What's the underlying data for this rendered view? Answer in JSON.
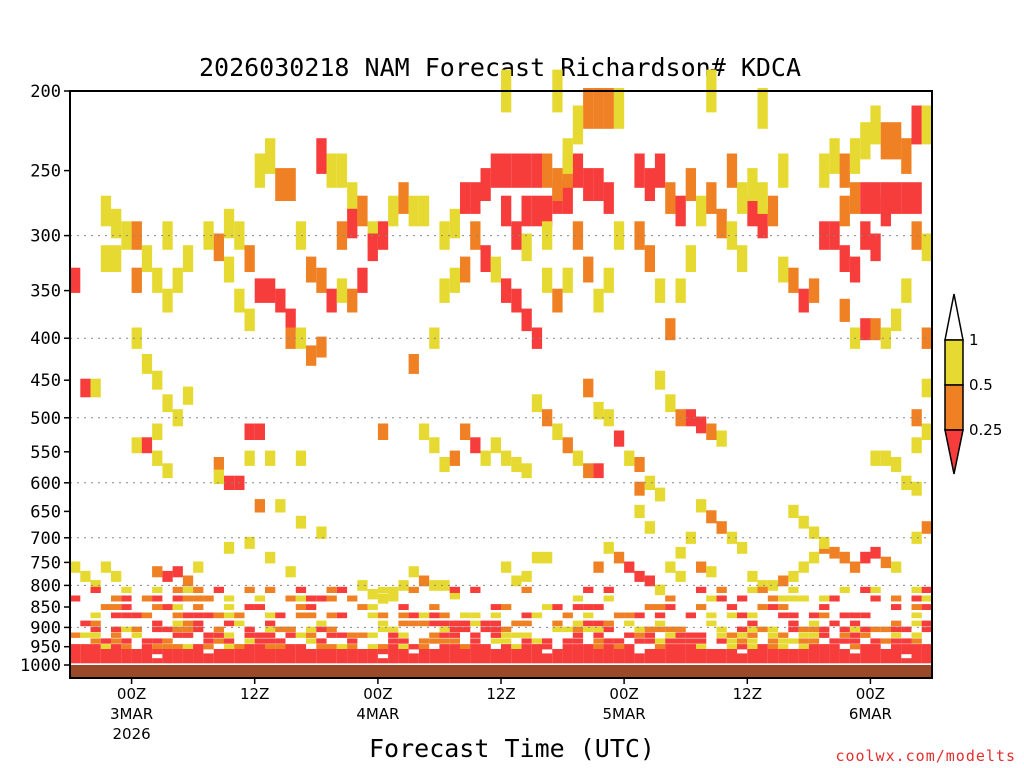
{
  "chart_data": {
    "type": "heatmap",
    "title": "2026030218 NAM Forecast Richardson# KDCA",
    "xlabel": "Forecast Time (UTC)",
    "ylabel": "",
    "credit": "coolwx.com/modelts",
    "y_ticks": [
      "200",
      "250",
      "300",
      "350",
      "400",
      "450",
      "500",
      "550",
      "600",
      "650",
      "700",
      "750",
      "800",
      "850",
      "900",
      "950",
      "1000"
    ],
    "y_tick_values": [
      200,
      250,
      300,
      350,
      400,
      450,
      500,
      550,
      600,
      650,
      700,
      750,
      800,
      850,
      900,
      950,
      1000
    ],
    "y_gridlines": [
      300,
      400,
      500,
      600,
      700,
      800,
      900
    ],
    "x_range_hours": [
      -6,
      78
    ],
    "x_ticks": [
      {
        "hour": 0,
        "label": "00Z",
        "sub1": "3MAR",
        "sub2": "2026"
      },
      {
        "hour": 12,
        "label": "12Z",
        "sub1": "",
        "sub2": ""
      },
      {
        "hour": 24,
        "label": "00Z",
        "sub1": "4MAR",
        "sub2": ""
      },
      {
        "hour": 36,
        "label": "12Z",
        "sub1": "",
        "sub2": ""
      },
      {
        "hour": 48,
        "label": "00Z",
        "sub1": "5MAR",
        "sub2": ""
      },
      {
        "hour": 60,
        "label": "12Z",
        "sub1": "",
        "sub2": ""
      },
      {
        "hour": 72,
        "label": "00Z",
        "sub1": "6MAR",
        "sub2": ""
      }
    ],
    "colorbar": {
      "levels": [
        "1",
        "0.5",
        "0.25"
      ],
      "bins": [
        {
          "range": "0.5-1",
          "color": "#e6da32"
        },
        {
          "range": "0.25-0.5",
          "color": "#ef8023"
        },
        {
          "range": "<0.25",
          "color": "#f73c3c"
        }
      ],
      "over_color": "#ffffff",
      "under_color": "#f73c3c"
    },
    "ground_color": "#9a4a28",
    "cells": [
      [
        -5.5,
        340,
        3
      ],
      [
        -4.5,
        460,
        3
      ],
      [
        -3.5,
        460,
        1
      ],
      [
        -2.5,
        280,
        1
      ],
      [
        -1.5,
        290,
        1
      ],
      [
        -0.5,
        300,
        1
      ],
      [
        0.5,
        300,
        2
      ],
      [
        1.5,
        320,
        1
      ],
      [
        2.5,
        340,
        1
      ],
      [
        3.5,
        360,
        1
      ],
      [
        -2.5,
        320,
        1
      ],
      [
        -1.5,
        320,
        1
      ],
      [
        0.5,
        340,
        2
      ],
      [
        3.5,
        300,
        1
      ],
      [
        4.5,
        340,
        1
      ],
      [
        5.5,
        320,
        1
      ],
      [
        0.5,
        400,
        1
      ],
      [
        1.5,
        430,
        1
      ],
      [
        2.5,
        450,
        1
      ],
      [
        3.5,
        480,
        1
      ],
      [
        4.5,
        500,
        1
      ],
      [
        5.5,
        470,
        1
      ],
      [
        0.5,
        540,
        1
      ],
      [
        1.5,
        540,
        3
      ],
      [
        2.5,
        560,
        1
      ],
      [
        3.5,
        580,
        1
      ],
      [
        2.5,
        520,
        1
      ],
      [
        -2.5,
        760,
        1
      ],
      [
        -1.5,
        780,
        1
      ],
      [
        -3.5,
        800,
        1
      ],
      [
        -4.5,
        780,
        1
      ],
      [
        -5.5,
        760,
        1
      ],
      [
        2.5,
        770,
        2
      ],
      [
        3.5,
        780,
        3
      ],
      [
        4.5,
        770,
        3
      ],
      [
        5.5,
        790,
        2
      ],
      [
        6.5,
        760,
        1
      ],
      [
        7.5,
        300,
        1
      ],
      [
        8.5,
        310,
        2
      ],
      [
        9.5,
        330,
        1
      ],
      [
        10.5,
        360,
        1
      ],
      [
        11.5,
        380,
        1
      ],
      [
        9.5,
        290,
        1
      ],
      [
        10.5,
        300,
        1
      ],
      [
        11.5,
        320,
        2
      ],
      [
        12.5,
        350,
        3
      ],
      [
        13.5,
        350,
        3
      ],
      [
        14.5,
        360,
        3
      ],
      [
        15.5,
        380,
        3
      ],
      [
        12.5,
        250,
        1
      ],
      [
        13.5,
        240,
        1
      ],
      [
        14.5,
        260,
        2
      ],
      [
        15.5,
        260,
        2
      ],
      [
        16.5,
        300,
        1
      ],
      [
        17.5,
        330,
        2
      ],
      [
        18.5,
        340,
        2
      ],
      [
        19.5,
        360,
        3
      ],
      [
        15.5,
        400,
        2
      ],
      [
        16.5,
        400,
        1
      ],
      [
        17.5,
        420,
        2
      ],
      [
        18.5,
        410,
        2
      ],
      [
        11.5,
        520,
        3
      ],
      [
        12.5,
        520,
        3
      ],
      [
        11.5,
        560,
        1
      ],
      [
        13.5,
        560,
        1
      ],
      [
        16.5,
        560,
        1
      ],
      [
        8.5,
        570,
        2
      ],
      [
        9.5,
        600,
        3
      ],
      [
        10.5,
        600,
        3
      ],
      [
        8.5,
        590,
        1
      ],
      [
        12.5,
        640,
        2
      ],
      [
        14.5,
        640,
        1
      ],
      [
        16.5,
        670,
        1
      ],
      [
        18.5,
        690,
        1
      ],
      [
        9.5,
        720,
        1
      ],
      [
        11.5,
        710,
        1
      ],
      [
        13.5,
        740,
        1
      ],
      [
        15.5,
        770,
        1
      ],
      [
        18.5,
        240,
        3
      ],
      [
        19.5,
        250,
        1
      ],
      [
        20.5,
        250,
        1
      ],
      [
        21.5,
        270,
        1
      ],
      [
        20.5,
        300,
        2
      ],
      [
        21.5,
        290,
        3
      ],
      [
        22.5,
        280,
        2
      ],
      [
        23.5,
        300,
        1
      ],
      [
        20.5,
        350,
        1
      ],
      [
        21.5,
        360,
        2
      ],
      [
        22.5,
        340,
        3
      ],
      [
        23.5,
        310,
        3
      ],
      [
        24.5,
        300,
        3
      ],
      [
        25.5,
        280,
        1
      ],
      [
        26.5,
        270,
        2
      ],
      [
        27.5,
        280,
        1
      ],
      [
        28.5,
        280,
        1
      ],
      [
        27.5,
        430,
        2
      ],
      [
        29.5,
        400,
        1
      ],
      [
        30.5,
        350,
        1
      ],
      [
        31.5,
        340,
        1
      ],
      [
        30.5,
        300,
        1
      ],
      [
        31.5,
        290,
        1
      ],
      [
        32.5,
        270,
        3
      ],
      [
        33.5,
        270,
        3
      ],
      [
        34.5,
        260,
        3
      ],
      [
        32.5,
        330,
        2
      ],
      [
        33.5,
        300,
        2
      ],
      [
        34.5,
        320,
        3
      ],
      [
        35.5,
        330,
        1
      ],
      [
        35.5,
        250,
        3
      ],
      [
        36.5,
        250,
        3
      ],
      [
        37.5,
        250,
        3
      ],
      [
        38.5,
        250,
        3
      ],
      [
        39.5,
        250,
        3
      ],
      [
        36.5,
        280,
        3
      ],
      [
        37.5,
        300,
        3
      ],
      [
        38.5,
        280,
        3
      ],
      [
        39.5,
        280,
        3
      ],
      [
        40.5,
        280,
        3
      ],
      [
        41.5,
        270,
        3
      ],
      [
        42.5,
        270,
        3
      ],
      [
        40.5,
        250,
        2
      ],
      [
        41.5,
        260,
        2
      ],
      [
        42.5,
        250,
        2
      ],
      [
        43.5,
        250,
        3
      ],
      [
        44.5,
        260,
        3
      ],
      [
        45.5,
        260,
        3
      ],
      [
        46.5,
        270,
        3
      ],
      [
        36.5,
        350,
        3
      ],
      [
        37.5,
        360,
        3
      ],
      [
        38.5,
        380,
        3
      ],
      [
        39.5,
        400,
        3
      ],
      [
        40.5,
        340,
        1
      ],
      [
        41.5,
        360,
        2
      ],
      [
        42.5,
        340,
        1
      ],
      [
        43.5,
        300,
        2
      ],
      [
        44.5,
        330,
        2
      ],
      [
        45.5,
        360,
        1
      ],
      [
        46.5,
        340,
        1
      ],
      [
        47.5,
        300,
        1
      ],
      [
        38.5,
        310,
        1
      ],
      [
        40.5,
        300,
        1
      ],
      [
        44.5,
        210,
        2
      ],
      [
        45.5,
        210,
        2
      ],
      [
        46.5,
        210,
        2
      ],
      [
        42.5,
        240,
        1
      ],
      [
        43.5,
        220,
        1
      ],
      [
        47.5,
        210,
        1
      ],
      [
        41.5,
        200,
        1
      ],
      [
        36.5,
        200,
        1
      ],
      [
        49.5,
        250,
        3
      ],
      [
        50.5,
        260,
        3
      ],
      [
        51.5,
        250,
        3
      ],
      [
        52.5,
        270,
        2
      ],
      [
        53.5,
        280,
        3
      ],
      [
        54.5,
        260,
        2
      ],
      [
        55.5,
        280,
        1
      ],
      [
        49.5,
        300,
        2
      ],
      [
        50.5,
        320,
        2
      ],
      [
        51.5,
        350,
        1
      ],
      [
        52.5,
        390,
        2
      ],
      [
        53.5,
        350,
        1
      ],
      [
        54.5,
        320,
        1
      ],
      [
        56.5,
        270,
        2
      ],
      [
        57.5,
        290,
        2
      ],
      [
        58.5,
        300,
        1
      ],
      [
        59.5,
        320,
        1
      ],
      [
        60.5,
        280,
        3
      ],
      [
        61.5,
        290,
        3
      ],
      [
        62.5,
        280,
        2
      ],
      [
        63.5,
        250,
        1
      ],
      [
        58.5,
        250,
        2
      ],
      [
        59.5,
        270,
        1
      ],
      [
        60.5,
        260,
        1
      ],
      [
        61.5,
        270,
        1
      ],
      [
        56.5,
        200,
        1
      ],
      [
        61.5,
        210,
        1
      ],
      [
        63.5,
        330,
        1
      ],
      [
        64.5,
        340,
        2
      ],
      [
        65.5,
        360,
        3
      ],
      [
        66.5,
        350,
        2
      ],
      [
        67.5,
        300,
        3
      ],
      [
        68.5,
        300,
        3
      ],
      [
        69.5,
        320,
        3
      ],
      [
        70.5,
        330,
        3
      ],
      [
        71.5,
        300,
        3
      ],
      [
        72.5,
        310,
        3
      ],
      [
        73.5,
        280,
        3
      ],
      [
        69.5,
        280,
        2
      ],
      [
        70.5,
        270,
        2
      ],
      [
        71.5,
        270,
        3
      ],
      [
        72.5,
        270,
        3
      ],
      [
        73.5,
        270,
        3
      ],
      [
        74.5,
        270,
        3
      ],
      [
        75.5,
        270,
        3
      ],
      [
        76.5,
        270,
        3
      ],
      [
        67.5,
        250,
        1
      ],
      [
        68.5,
        240,
        1
      ],
      [
        69.5,
        250,
        2
      ],
      [
        70.5,
        240,
        1
      ],
      [
        71.5,
        230,
        1
      ],
      [
        72.5,
        220,
        1
      ],
      [
        73.5,
        230,
        2
      ],
      [
        74.5,
        230,
        2
      ],
      [
        75.5,
        240,
        2
      ],
      [
        76.5,
        220,
        3
      ],
      [
        77.5,
        220,
        1
      ],
      [
        69.5,
        370,
        2
      ],
      [
        70.5,
        400,
        1
      ],
      [
        71.5,
        390,
        3
      ],
      [
        72.5,
        390,
        2
      ],
      [
        73.5,
        400,
        1
      ],
      [
        74.5,
        380,
        1
      ],
      [
        75.5,
        350,
        1
      ],
      [
        76.5,
        300,
        2
      ],
      [
        77.5,
        310,
        1
      ],
      [
        77.5,
        400,
        2
      ],
      [
        77.5,
        460,
        1
      ],
      [
        51.5,
        450,
        1
      ],
      [
        52.5,
        480,
        1
      ],
      [
        53.5,
        500,
        2
      ],
      [
        54.5,
        500,
        3
      ],
      [
        55.5,
        510,
        3
      ],
      [
        56.5,
        520,
        2
      ],
      [
        57.5,
        530,
        1
      ],
      [
        44.5,
        460,
        2
      ],
      [
        45.5,
        490,
        1
      ],
      [
        46.5,
        500,
        1
      ],
      [
        47.5,
        530,
        3
      ],
      [
        48.5,
        560,
        1
      ],
      [
        49.5,
        570,
        2
      ],
      [
        39.5,
        480,
        1
      ],
      [
        40.5,
        500,
        2
      ],
      [
        41.5,
        520,
        1
      ],
      [
        42.5,
        540,
        2
      ],
      [
        43.5,
        560,
        1
      ],
      [
        44.5,
        580,
        2
      ],
      [
        45.5,
        580,
        3
      ],
      [
        35.5,
        540,
        1
      ],
      [
        36.5,
        560,
        1
      ],
      [
        37.5,
        570,
        1
      ],
      [
        38.5,
        580,
        1
      ],
      [
        30.5,
        570,
        1
      ],
      [
        31.5,
        560,
        2
      ],
      [
        32.5,
        520,
        2
      ],
      [
        33.5,
        540,
        3
      ],
      [
        34.5,
        560,
        1
      ],
      [
        24.5,
        520,
        2
      ],
      [
        29.5,
        540,
        1
      ],
      [
        28.5,
        520,
        1
      ],
      [
        49.5,
        610,
        2
      ],
      [
        50.5,
        600,
        1
      ],
      [
        51.5,
        620,
        1
      ],
      [
        49.5,
        650,
        1
      ],
      [
        50.5,
        680,
        1
      ],
      [
        55.5,
        640,
        1
      ],
      [
        56.5,
        660,
        2
      ],
      [
        57.5,
        680,
        2
      ],
      [
        58.5,
        700,
        1
      ],
      [
        59.5,
        720,
        1
      ],
      [
        54.5,
        700,
        1
      ],
      [
        53.5,
        730,
        1
      ],
      [
        55.5,
        760,
        2
      ],
      [
        56.5,
        770,
        1
      ],
      [
        46.5,
        720,
        1
      ],
      [
        47.5,
        740,
        2
      ],
      [
        48.5,
        760,
        3
      ],
      [
        49.5,
        780,
        3
      ],
      [
        50.5,
        790,
        3
      ],
      [
        51.5,
        810,
        1
      ],
      [
        45.5,
        760,
        2
      ],
      [
        52.5,
        760,
        1
      ],
      [
        53.5,
        780,
        1
      ],
      [
        60.5,
        780,
        1
      ],
      [
        61.5,
        800,
        1
      ],
      [
        62.5,
        800,
        1
      ],
      [
        63.5,
        790,
        2
      ],
      [
        64.5,
        780,
        1
      ],
      [
        65.5,
        760,
        1
      ],
      [
        66.5,
        740,
        1
      ],
      [
        67.5,
        720,
        2
      ],
      [
        68.5,
        730,
        2
      ],
      [
        69.5,
        740,
        2
      ],
      [
        70.5,
        760,
        2
      ],
      [
        71.5,
        740,
        3
      ],
      [
        72.5,
        730,
        3
      ],
      [
        73.5,
        750,
        2
      ],
      [
        74.5,
        760,
        1
      ],
      [
        75.5,
        600,
        1
      ],
      [
        76.5,
        610,
        1
      ],
      [
        77.5,
        680,
        2
      ],
      [
        76.5,
        700,
        1
      ],
      [
        64.5,
        650,
        1
      ],
      [
        65.5,
        670,
        1
      ],
      [
        66.5,
        690,
        1
      ],
      [
        67.5,
        710,
        1
      ],
      [
        72.5,
        560,
        1
      ],
      [
        73.5,
        560,
        1
      ],
      [
        74.5,
        570,
        1
      ],
      [
        76.5,
        540,
        1
      ],
      [
        77.5,
        520,
        1
      ],
      [
        76.5,
        500,
        2
      ],
      [
        36.5,
        760,
        1
      ],
      [
        37.5,
        790,
        1
      ],
      [
        38.5,
        780,
        1
      ],
      [
        39.5,
        740,
        1
      ],
      [
        40.5,
        740,
        1
      ],
      [
        27.5,
        770,
        1
      ],
      [
        28.5,
        790,
        2
      ],
      [
        29.5,
        800,
        1
      ],
      [
        30.5,
        800,
        1
      ],
      [
        31.5,
        820,
        1
      ],
      [
        22.5,
        800,
        1
      ],
      [
        23.5,
        820,
        1
      ],
      [
        24.5,
        830,
        1
      ],
      [
        25.5,
        820,
        1
      ],
      [
        26.5,
        800,
        1
      ]
    ],
    "band_rows": [
      {
        "p": 810,
        "density": 0.35
      },
      {
        "p": 830,
        "density": 0.4
      },
      {
        "p": 850,
        "density": 0.45
      },
      {
        "p": 870,
        "density": 0.5
      },
      {
        "p": 890,
        "density": 0.55
      },
      {
        "p": 905,
        "density": 0.6
      },
      {
        "p": 920,
        "density": 0.65
      },
      {
        "p": 935,
        "density": 0.75
      },
      {
        "p": 950,
        "density": 0.85
      },
      {
        "p": 963,
        "density": 0.92
      },
      {
        "p": 975,
        "density": 0.97
      },
      {
        "p": 988,
        "density": 1.0
      }
    ]
  }
}
